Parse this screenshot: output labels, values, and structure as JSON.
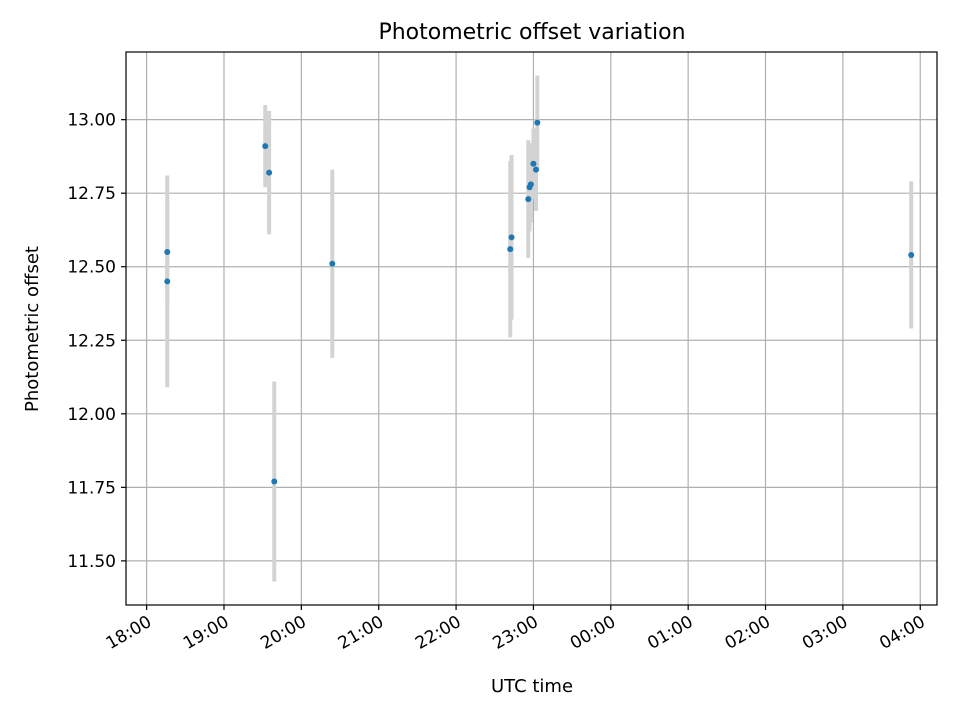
{
  "chart_data": {
    "type": "scatter",
    "title": "Photometric offset variation",
    "xlabel": "UTC time",
    "ylabel": "Photometric offset",
    "x_is_time": true,
    "xlim": [
      "18:00",
      "04:00"
    ],
    "ylim": [
      11.35,
      13.23
    ],
    "grid": true,
    "xticks": [
      "18:00",
      "19:00",
      "20:00",
      "21:00",
      "22:00",
      "23:00",
      "00:00",
      "01:00",
      "02:00",
      "03:00",
      "04:00"
    ],
    "yticks": [
      "11.50",
      "11.75",
      "12.00",
      "12.25",
      "12.50",
      "12.75",
      "13.00"
    ],
    "points": [
      {
        "x": "18:16",
        "y": 12.55,
        "err": 0.18
      },
      {
        "x": "18:16",
        "y": 12.45,
        "err": 0.36
      },
      {
        "x": "19:32",
        "y": 12.91,
        "err": 0.14
      },
      {
        "x": "19:35",
        "y": 12.82,
        "err": 0.21
      },
      {
        "x": "19:39",
        "y": 11.77,
        "err": 0.34
      },
      {
        "x": "20:24",
        "y": 12.51,
        "err": 0.32
      },
      {
        "x": "22:42",
        "y": 12.56,
        "err": 0.3
      },
      {
        "x": "22:43",
        "y": 12.6,
        "err": 0.28
      },
      {
        "x": "22:56",
        "y": 12.73,
        "err": 0.2
      },
      {
        "x": "22:57",
        "y": 12.77,
        "err": 0.15
      },
      {
        "x": "22:58",
        "y": 12.78,
        "err": 0.13
      },
      {
        "x": "23:00",
        "y": 12.85,
        "err": 0.12
      },
      {
        "x": "23:02",
        "y": 12.83,
        "err": 0.14
      },
      {
        "x": "23:03",
        "y": 12.99,
        "err": 0.16
      },
      {
        "x": "03:53",
        "y": 12.54,
        "err": 0.25
      }
    ],
    "colors": {
      "marker": "#1f77b4",
      "errorbar": "#d3d3d3",
      "grid": "#b0b0b0"
    }
  }
}
